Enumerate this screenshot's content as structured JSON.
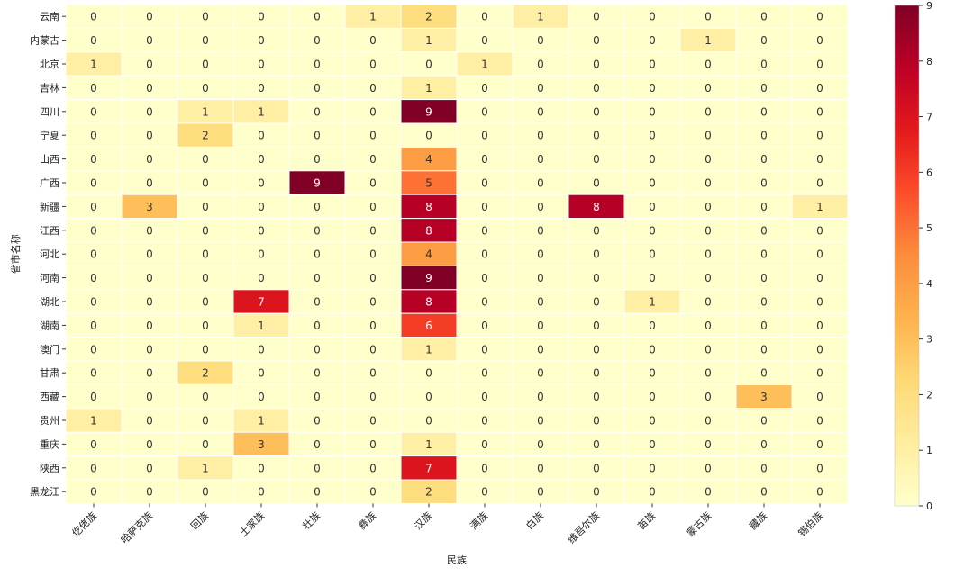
{
  "chart_data": {
    "type": "heatmap",
    "title": "",
    "xlabel": "民族",
    "ylabel": "省市名称",
    "x_categories": [
      "仡佬族",
      "哈萨克族",
      "回族",
      "土家族",
      "壮族",
      "彝族",
      "汉族",
      "满族",
      "白族",
      "维吾尔族",
      "苗族",
      "蒙古族",
      "藏族",
      "锡伯族"
    ],
    "y_categories": [
      "云南",
      "内蒙古",
      "北京",
      "吉林",
      "四川",
      "宁夏",
      "山西",
      "广西",
      "新疆",
      "江西",
      "河北",
      "河南",
      "湖北",
      "湖南",
      "澳门",
      "甘肃",
      "西藏",
      "贵州",
      "重庆",
      "陕西",
      "黑龙江"
    ],
    "values": [
      [
        0,
        0,
        0,
        0,
        0,
        1,
        2,
        0,
        1,
        0,
        0,
        0,
        0,
        0
      ],
      [
        0,
        0,
        0,
        0,
        0,
        0,
        1,
        0,
        0,
        0,
        0,
        1,
        0,
        0
      ],
      [
        1,
        0,
        0,
        0,
        0,
        0,
        0,
        1,
        0,
        0,
        0,
        0,
        0,
        0
      ],
      [
        0,
        0,
        0,
        0,
        0,
        0,
        1,
        0,
        0,
        0,
        0,
        0,
        0,
        0
      ],
      [
        0,
        0,
        1,
        1,
        0,
        0,
        9,
        0,
        0,
        0,
        0,
        0,
        0,
        0
      ],
      [
        0,
        0,
        2,
        0,
        0,
        0,
        0,
        0,
        0,
        0,
        0,
        0,
        0,
        0
      ],
      [
        0,
        0,
        0,
        0,
        0,
        0,
        4,
        0,
        0,
        0,
        0,
        0,
        0,
        0
      ],
      [
        0,
        0,
        0,
        0,
        9,
        0,
        5,
        0,
        0,
        0,
        0,
        0,
        0,
        0
      ],
      [
        0,
        3,
        0,
        0,
        0,
        0,
        8,
        0,
        0,
        8,
        0,
        0,
        0,
        1
      ],
      [
        0,
        0,
        0,
        0,
        0,
        0,
        8,
        0,
        0,
        0,
        0,
        0,
        0,
        0
      ],
      [
        0,
        0,
        0,
        0,
        0,
        0,
        4,
        0,
        0,
        0,
        0,
        0,
        0,
        0
      ],
      [
        0,
        0,
        0,
        0,
        0,
        0,
        9,
        0,
        0,
        0,
        0,
        0,
        0,
        0
      ],
      [
        0,
        0,
        0,
        7,
        0,
        0,
        8,
        0,
        0,
        0,
        1,
        0,
        0,
        0
      ],
      [
        0,
        0,
        0,
        1,
        0,
        0,
        6,
        0,
        0,
        0,
        0,
        0,
        0,
        0
      ],
      [
        0,
        0,
        0,
        0,
        0,
        0,
        1,
        0,
        0,
        0,
        0,
        0,
        0,
        0
      ],
      [
        0,
        0,
        2,
        0,
        0,
        0,
        0,
        0,
        0,
        0,
        0,
        0,
        0,
        0
      ],
      [
        0,
        0,
        0,
        0,
        0,
        0,
        0,
        0,
        0,
        0,
        0,
        0,
        3,
        0
      ],
      [
        1,
        0,
        0,
        1,
        0,
        0,
        0,
        0,
        0,
        0,
        0,
        0,
        0,
        0
      ],
      [
        0,
        0,
        0,
        3,
        0,
        0,
        1,
        0,
        0,
        0,
        0,
        0,
        0,
        0
      ],
      [
        0,
        0,
        1,
        0,
        0,
        0,
        7,
        0,
        0,
        0,
        0,
        0,
        0,
        0
      ],
      [
        0,
        0,
        0,
        0,
        0,
        0,
        2,
        0,
        0,
        0,
        0,
        0,
        0,
        0
      ]
    ],
    "colorbar": {
      "min": 0,
      "max": 9,
      "ticks": [
        0,
        1,
        2,
        3,
        4,
        5,
        6,
        7,
        8,
        9
      ],
      "colormap": "YlOrRd",
      "colors": [
        "#ffffcc",
        "#ffeda0",
        "#fed976",
        "#feb24c",
        "#fd8d3c",
        "#fc4e2a",
        "#e31a1c",
        "#bd0026",
        "#800026"
      ]
    },
    "annotated": true,
    "grid": true
  }
}
